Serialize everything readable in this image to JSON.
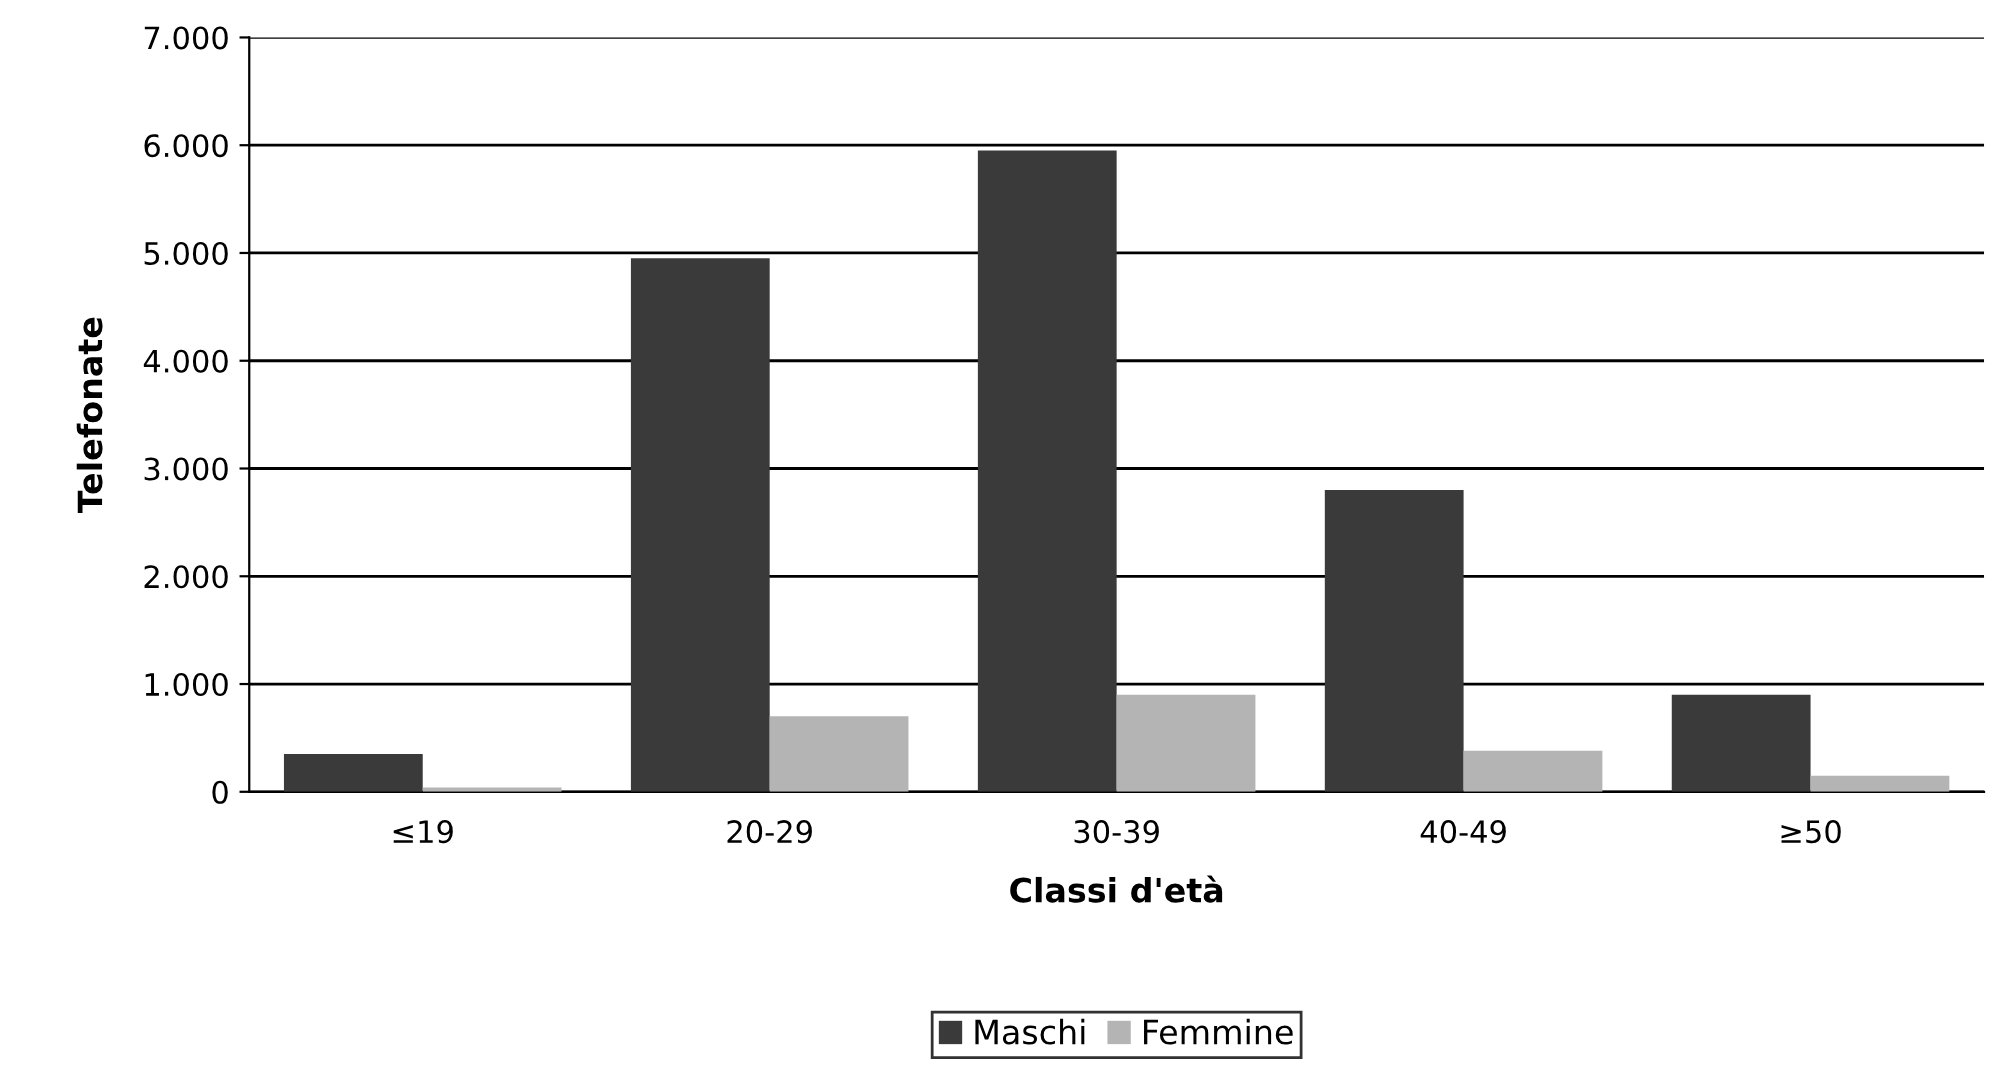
{
  "chart_data": {
    "type": "bar",
    "xlabel": "Classi d'età",
    "ylabel": "Telefonate",
    "categories": [
      "≤19",
      "20-29",
      "30-39",
      "40-49",
      "≥50"
    ],
    "series": [
      {
        "name": "Maschi",
        "color": "#3a3a3a",
        "values": [
          350,
          4950,
          5950,
          2800,
          900
        ]
      },
      {
        "name": "Femmine",
        "color": "#b4b4b4",
        "values": [
          40,
          700,
          900,
          380,
          150
        ]
      }
    ],
    "ylim": [
      0,
      7000
    ],
    "yticks": [
      {
        "value": 0,
        "label": "0"
      },
      {
        "value": 1000,
        "label": "1.000"
      },
      {
        "value": 2000,
        "label": "2.000"
      },
      {
        "value": 3000,
        "label": "3.000"
      },
      {
        "value": 4000,
        "label": "4.000"
      },
      {
        "value": 5000,
        "label": "5.000"
      },
      {
        "value": 6000,
        "label": "6.000"
      },
      {
        "value": 7000,
        "label": "7.000"
      }
    ],
    "grid": "y",
    "legend": "bottom"
  }
}
